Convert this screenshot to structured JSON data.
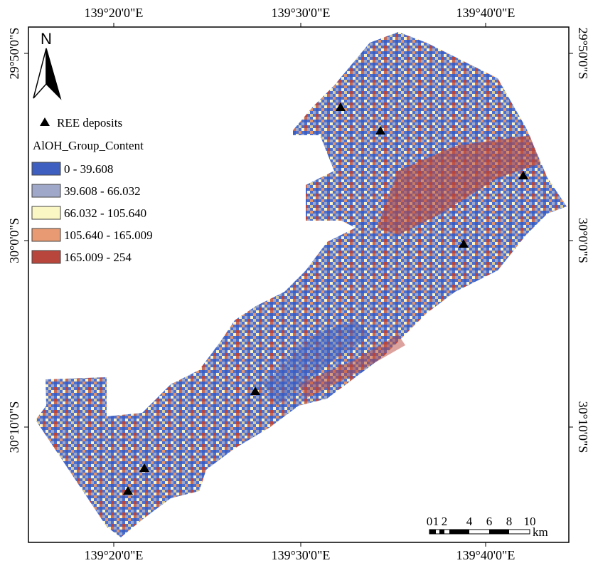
{
  "north": "N",
  "legend": {
    "point": "REE deposits",
    "title": "AlOH_Group_Content",
    "classes": [
      "0 - 39.608",
      "39.608 - 66.032",
      "66.032 - 105.640",
      "105.640 - 165.009",
      "165.009 - 254"
    ]
  },
  "graticule": {
    "top": [
      "139°20'0\"E",
      "139°30'0\"E",
      "139°40'0\"E"
    ],
    "bottom": [
      "139°20'0\"E",
      "139°30'0\"E",
      "139°40'0\"E"
    ],
    "left": [
      "29°50'0\"S",
      "30°0'0\"S",
      "30°10'0\"S"
    ],
    "right": [
      "29°50'0\"S",
      "30°0'0\"S",
      "30°10'0\"S"
    ]
  },
  "scale_bar": {
    "labels": [
      "0",
      "1",
      "2",
      "4",
      "6",
      "8",
      "10"
    ],
    "unit": "km"
  }
}
